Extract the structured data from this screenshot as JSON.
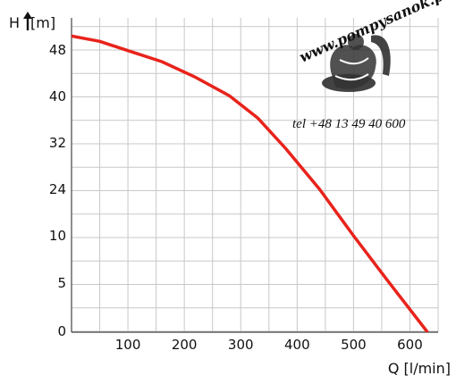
{
  "chart_data": {
    "type": "line",
    "title": "",
    "xlabel": "Q [l/min]",
    "ylabel": "H [m]",
    "x_ticks": [
      "100",
      "200",
      "300",
      "400",
      "500",
      "600"
    ],
    "x_tick_values": [
      100,
      200,
      300,
      400,
      500,
      600
    ],
    "y_ticks": [
      "0",
      "5",
      "10",
      "24",
      "32",
      "40",
      "48"
    ],
    "y_tick_values": [
      0,
      5,
      10,
      24,
      32,
      40,
      48
    ],
    "y_scale": "nonlinear-ordinal",
    "xlim": [
      0,
      650
    ],
    "grid": true,
    "legend": "none",
    "series": [
      {
        "color": "#e8231b",
        "x": [
          0,
          50,
          100,
          160,
          220,
          280,
          330,
          380,
          440,
          500,
          560,
          630
        ],
        "y": [
          50.4,
          49.5,
          47.9,
          46.0,
          43.3,
          40.1,
          36.3,
          31.0,
          24.0,
          10.0,
          5.3,
          0
        ]
      }
    ]
  },
  "watermark": {
    "url": "www.pompysanok.pl",
    "phone": "tel +48 13 49 40 600"
  },
  "colors": {
    "grid": "#c8c8c8",
    "axis": "#444444",
    "curve": "#e8231b"
  }
}
